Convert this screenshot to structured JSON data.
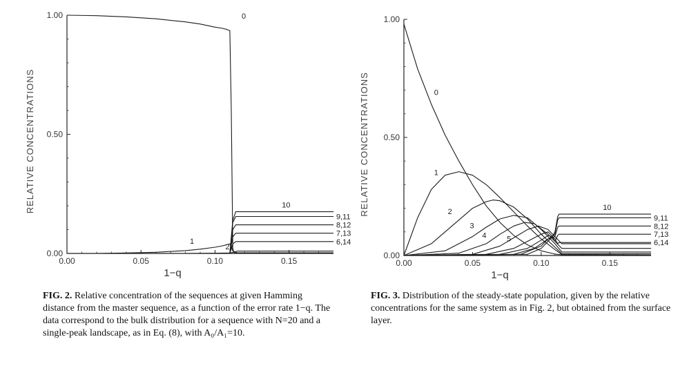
{
  "chart_data": [
    {
      "type": "line",
      "xlabel": "1−q",
      "ylabel": "RELATIVE CONCENTRATIONS",
      "xlim": [
        0,
        0.18
      ],
      "ylim": [
        0,
        1
      ],
      "xticks": [
        "0.00",
        "0.05",
        "0.10",
        "0.15"
      ],
      "yticks": [
        "0.00",
        "0.50",
        "1.00"
      ],
      "grid": false,
      "series": [
        {
          "name": "0",
          "x": [
            0,
            0.02,
            0.04,
            0.06,
            0.08,
            0.09,
            0.1,
            0.105,
            0.108,
            0.11,
            0.111,
            0.112,
            0.113,
            0.115,
            0.18
          ],
          "y": [
            1.0,
            0.998,
            0.993,
            0.985,
            0.972,
            0.963,
            0.95,
            0.945,
            0.94,
            0.935,
            0.6,
            0.02,
            0.003,
            0.002,
            0.002
          ]
        },
        {
          "name": "1",
          "x": [
            0,
            0.02,
            0.04,
            0.06,
            0.08,
            0.09,
            0.1,
            0.105,
            0.11,
            0.111,
            0.112,
            0.115,
            0.18
          ],
          "y": [
            0,
            0.0,
            0.002,
            0.005,
            0.012,
            0.018,
            0.026,
            0.032,
            0.04,
            0.03,
            0.01,
            0.003,
            0.003
          ]
        },
        {
          "name": "2",
          "x": [
            0,
            0.08,
            0.1,
            0.11,
            0.112,
            0.115,
            0.18
          ],
          "y": [
            0,
            0.0,
            0.001,
            0.002,
            0.004,
            0.01,
            0.01
          ]
        },
        {
          "name": "6,14",
          "x": [
            0,
            0.11,
            0.112,
            0.114,
            0.18
          ],
          "y": [
            0,
            0,
            0.04,
            0.05,
            0.05
          ]
        },
        {
          "name": "7,13",
          "x": [
            0,
            0.11,
            0.112,
            0.114,
            0.18
          ],
          "y": [
            0,
            0,
            0.07,
            0.085,
            0.085
          ]
        },
        {
          "name": "8,12",
          "x": [
            0,
            0.11,
            0.112,
            0.114,
            0.18
          ],
          "y": [
            0,
            0,
            0.1,
            0.12,
            0.12
          ]
        },
        {
          "name": "9,11",
          "x": [
            0,
            0.11,
            0.112,
            0.114,
            0.18
          ],
          "y": [
            0,
            0,
            0.13,
            0.155,
            0.155
          ]
        },
        {
          "name": "10",
          "x": [
            0,
            0.11,
            0.112,
            0.114,
            0.18
          ],
          "y": [
            0,
            0,
            0.14,
            0.175,
            0.175
          ]
        }
      ]
    },
    {
      "type": "line",
      "xlabel": "1−q",
      "ylabel": "RELATIVE CONCENTRATIONS",
      "xlim": [
        0,
        0.18
      ],
      "ylim": [
        0,
        1
      ],
      "xticks": [
        "0.00",
        "0.05",
        "0.10",
        "0.15"
      ],
      "yticks": [
        "0.00",
        "0.50",
        "1.00"
      ],
      "grid": false,
      "series": [
        {
          "name": "0",
          "x": [
            0,
            0.01,
            0.02,
            0.03,
            0.04,
            0.05,
            0.06,
            0.07,
            0.08,
            0.09,
            0.1,
            0.11,
            0.115,
            0.18
          ],
          "y": [
            0.98,
            0.79,
            0.64,
            0.51,
            0.4,
            0.3,
            0.21,
            0.14,
            0.085,
            0.045,
            0.02,
            0.006,
            0.003,
            0.002
          ]
        },
        {
          "name": "1",
          "x": [
            0,
            0.01,
            0.02,
            0.03,
            0.04,
            0.05,
            0.06,
            0.07,
            0.08,
            0.09,
            0.1,
            0.11,
            0.115,
            0.18
          ],
          "y": [
            0,
            0.16,
            0.28,
            0.34,
            0.355,
            0.34,
            0.3,
            0.245,
            0.185,
            0.125,
            0.07,
            0.025,
            0.004,
            0.003
          ]
        },
        {
          "name": "2",
          "x": [
            0,
            0.02,
            0.04,
            0.05,
            0.06,
            0.065,
            0.07,
            0.08,
            0.09,
            0.1,
            0.11,
            0.115,
            0.18
          ],
          "y": [
            0,
            0.05,
            0.15,
            0.2,
            0.228,
            0.235,
            0.232,
            0.205,
            0.155,
            0.09,
            0.035,
            0.008,
            0.008
          ]
        },
        {
          "name": "3",
          "x": [
            0,
            0.03,
            0.05,
            0.06,
            0.07,
            0.08,
            0.09,
            0.1,
            0.11,
            0.115,
            0.18
          ],
          "y": [
            0,
            0.02,
            0.08,
            0.12,
            0.155,
            0.17,
            0.16,
            0.11,
            0.05,
            0.015,
            0.015
          ]
        },
        {
          "name": "4",
          "x": [
            0,
            0.04,
            0.06,
            0.07,
            0.08,
            0.088,
            0.095,
            0.105,
            0.11,
            0.115,
            0.18
          ],
          "y": [
            0,
            0.01,
            0.05,
            0.09,
            0.125,
            0.14,
            0.135,
            0.09,
            0.06,
            0.03,
            0.03
          ]
        },
        {
          "name": "5",
          "x": [
            0,
            0.05,
            0.07,
            0.08,
            0.09,
            0.098,
            0.105,
            0.11,
            0.115,
            0.18
          ],
          "y": [
            0,
            0.005,
            0.04,
            0.075,
            0.11,
            0.125,
            0.11,
            0.08,
            0.05,
            0.05
          ]
        },
        {
          "name": "6,14",
          "x": [
            0,
            0.06,
            0.08,
            0.09,
            0.1,
            0.105,
            0.11,
            0.112,
            0.113,
            0.18
          ],
          "y": [
            0,
            0.005,
            0.03,
            0.06,
            0.09,
            0.1,
            0.07,
            0.05,
            0.055,
            0.055
          ]
        },
        {
          "name": "7,13",
          "x": [
            0,
            0.07,
            0.09,
            0.1,
            0.105,
            0.108,
            0.11,
            0.112,
            0.113,
            0.18
          ],
          "y": [
            0,
            0.005,
            0.03,
            0.065,
            0.085,
            0.08,
            0.06,
            0.085,
            0.09,
            0.09
          ]
        },
        {
          "name": "8,12",
          "x": [
            0,
            0.08,
            0.095,
            0.105,
            0.108,
            0.11,
            0.112,
            0.113,
            0.18
          ],
          "y": [
            0,
            0.005,
            0.03,
            0.07,
            0.075,
            0.08,
            0.12,
            0.125,
            0.125
          ]
        },
        {
          "name": "9,11",
          "x": [
            0,
            0.085,
            0.1,
            0.105,
            0.108,
            0.11,
            0.112,
            0.113,
            0.18
          ],
          "y": [
            0,
            0.005,
            0.04,
            0.07,
            0.08,
            0.09,
            0.15,
            0.16,
            0.16
          ]
        },
        {
          "name": "10",
          "x": [
            0,
            0.09,
            0.1,
            0.105,
            0.108,
            0.11,
            0.112,
            0.113,
            0.18
          ],
          "y": [
            0,
            0.005,
            0.03,
            0.06,
            0.08,
            0.1,
            0.165,
            0.175,
            0.175
          ]
        }
      ]
    }
  ],
  "captions": {
    "fig2": {
      "label": "FIG. 2.",
      "text": "Relative concentration of the sequences at given Hamming distance from the master sequence, as a function of the error rate 1−q. The data correspond to the bulk distribution for a sequence with N=20 and a single-peak landscape, as in Eq. (8), with A₀/A₁=10."
    },
    "fig3": {
      "label": "FIG. 3.",
      "text": "Distribution of the steady-state population, given by the relative concentrations for the same system as in Fig. 2, but obtained from the surface layer."
    }
  }
}
